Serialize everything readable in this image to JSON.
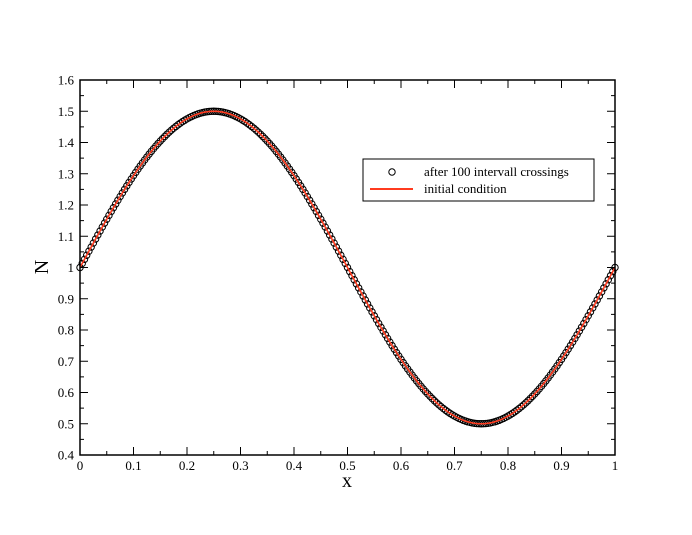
{
  "chart_data": {
    "type": "line",
    "xlabel": "x",
    "ylabel": "N",
    "xlim": [
      0,
      1
    ],
    "ylim": [
      0.4,
      1.6
    ],
    "xticks": [
      0,
      0.1,
      0.2,
      0.3,
      0.4,
      0.5,
      0.6,
      0.7,
      0.8,
      0.9,
      1
    ],
    "xtick_labels": [
      "0",
      "0.1",
      "0.2",
      "0.3",
      "0.4",
      "0.5",
      "0.6",
      "0.7",
      "0.8",
      "0.9",
      "1"
    ],
    "yticks": [
      0.4,
      0.5,
      0.6,
      0.7,
      0.8,
      0.9,
      1.0,
      1.1,
      1.2,
      1.3,
      1.4,
      1.5,
      1.6
    ],
    "ytick_labels": [
      "0.4",
      "0.5",
      "0.6",
      "0.7",
      "0.8",
      "0.9",
      "1",
      "1.1",
      "1.2",
      "1.3",
      "1.4",
      "1.5",
      "1.6"
    ],
    "grid": false,
    "legend_position": "right",
    "series": [
      {
        "name": "after 100 intervall crossings",
        "style": "markers",
        "marker": "open-circle",
        "color": "#000000",
        "function": "1 + 0.5*sin(2*pi*x)",
        "x": [
          0.0,
          0.025,
          0.05,
          0.075,
          0.1,
          0.125,
          0.15,
          0.175,
          0.2,
          0.225,
          0.25,
          0.275,
          0.3,
          0.325,
          0.35,
          0.375,
          0.4,
          0.425,
          0.45,
          0.475,
          0.5,
          0.525,
          0.55,
          0.575,
          0.6,
          0.625,
          0.65,
          0.675,
          0.7,
          0.725,
          0.75,
          0.775,
          0.8,
          0.825,
          0.85,
          0.875,
          0.9,
          0.925,
          0.95,
          0.975,
          1.0
        ],
        "values": [
          1.0,
          1.078,
          1.155,
          1.227,
          1.294,
          1.354,
          1.405,
          1.446,
          1.476,
          1.494,
          1.5,
          1.494,
          1.476,
          1.446,
          1.405,
          1.354,
          1.294,
          1.227,
          1.155,
          1.078,
          1.0,
          0.922,
          0.845,
          0.773,
          0.706,
          0.646,
          0.595,
          0.554,
          0.524,
          0.506,
          0.5,
          0.506,
          0.524,
          0.554,
          0.595,
          0.646,
          0.706,
          0.773,
          0.845,
          0.922,
          1.0
        ]
      },
      {
        "name": "initial condition",
        "style": "line",
        "color": "#ff3b1f",
        "function": "1 + 0.5*sin(2*pi*x)",
        "x": [
          0.0,
          0.025,
          0.05,
          0.075,
          0.1,
          0.125,
          0.15,
          0.175,
          0.2,
          0.225,
          0.25,
          0.275,
          0.3,
          0.325,
          0.35,
          0.375,
          0.4,
          0.425,
          0.45,
          0.475,
          0.5,
          0.525,
          0.55,
          0.575,
          0.6,
          0.625,
          0.65,
          0.675,
          0.7,
          0.725,
          0.75,
          0.775,
          0.8,
          0.825,
          0.85,
          0.875,
          0.9,
          0.925,
          0.95,
          0.975,
          1.0
        ],
        "values": [
          1.0,
          1.078,
          1.155,
          1.227,
          1.294,
          1.354,
          1.405,
          1.446,
          1.476,
          1.494,
          1.5,
          1.494,
          1.476,
          1.446,
          1.405,
          1.354,
          1.294,
          1.227,
          1.155,
          1.078,
          1.0,
          0.922,
          0.845,
          0.773,
          0.706,
          0.646,
          0.595,
          0.554,
          0.524,
          0.506,
          0.5,
          0.506,
          0.524,
          0.554,
          0.595,
          0.646,
          0.706,
          0.773,
          0.845,
          0.922,
          1.0
        ]
      }
    ]
  }
}
